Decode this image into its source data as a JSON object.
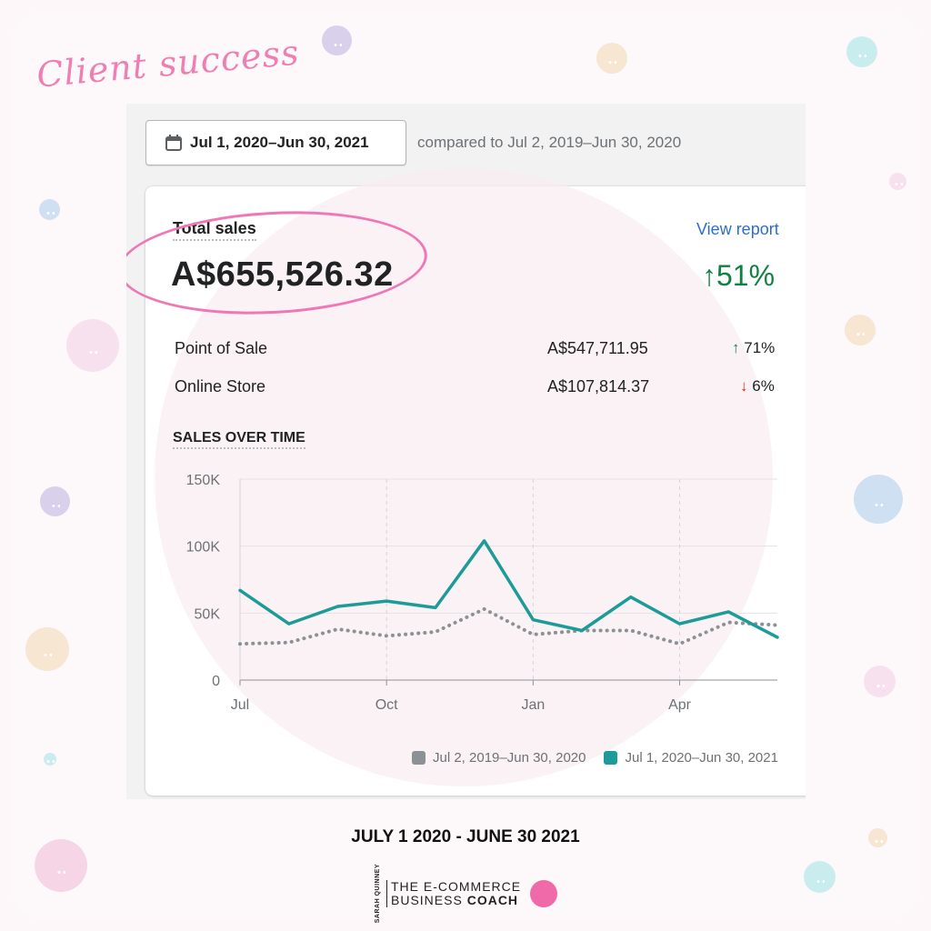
{
  "decor": {
    "script_title": "Client success",
    "dot_colors": [
      "#d9d0ec",
      "#f6e6d2",
      "#c9ecef",
      "#cfe0f3",
      "#f8e1ef",
      "#f6d6e6"
    ]
  },
  "toolbar": {
    "date_range": "Jul 1, 2020–Jun 30, 2021",
    "date_icon": "calendar-icon",
    "compared_to": "compared to Jul 2, 2019–Jun 30, 2020"
  },
  "total_sales": {
    "label": "Total sales",
    "view_report": "View report",
    "value": "A$655,526.32",
    "change": "↑51%",
    "change_color": "#108043",
    "highlight_color": "#f077b6"
  },
  "channels": [
    {
      "name": "Point of Sale",
      "amount": "A$547,711.95",
      "arrow": "↑",
      "pct": "71%",
      "trend": "up"
    },
    {
      "name": "Online Store",
      "amount": "A$107,814.37",
      "arrow": "↓",
      "pct": "6%",
      "trend": "down"
    }
  ],
  "sales_over_time": {
    "label": "SALES OVER TIME"
  },
  "chart_data": {
    "type": "line",
    "x": [
      "Jul",
      "Aug",
      "Sep",
      "Oct",
      "Nov",
      "Dec",
      "Jan",
      "Feb",
      "Mar",
      "Apr",
      "May",
      "Jun"
    ],
    "x_tick_labels": [
      "Jul",
      "Oct",
      "Jan",
      "Apr"
    ],
    "y_tick_labels": [
      "150K",
      "100K",
      "50K",
      "0"
    ],
    "ylim": [
      0,
      150000
    ],
    "grid": true,
    "legend_position": "bottom-right",
    "series": [
      {
        "name": "Jul 2, 2019–Jun 30, 2020",
        "color": "#8c9196",
        "style": "dotted",
        "values": [
          27000,
          28000,
          38000,
          33000,
          36000,
          53000,
          34000,
          37000,
          37000,
          27000,
          43000,
          41000
        ]
      },
      {
        "name": "Jul 1, 2020–Jun 30, 2021",
        "color": "#1c9b98",
        "style": "solid",
        "values": [
          67000,
          42000,
          55000,
          59000,
          54000,
          104000,
          45000,
          37000,
          62000,
          42000,
          51000,
          32000
        ]
      }
    ]
  },
  "footer": {
    "caption": "JULY 1 2020 - JUNE 30 2021",
    "logo_side": "SARAH QUINNEY",
    "logo_line1": "THE E-COMMERCE",
    "logo_line2_a": "BUSINESS ",
    "logo_line2_b": "COACH"
  }
}
